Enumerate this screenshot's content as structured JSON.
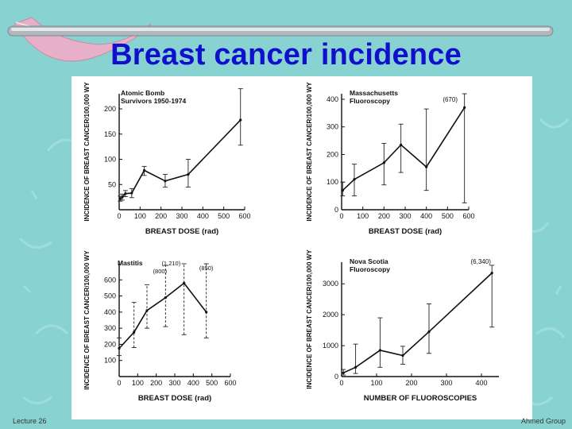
{
  "slide": {
    "title": "Breast cancer incidence",
    "footer_left": "Lecture 26",
    "footer_right": "Ahmed Group"
  },
  "colors": {
    "background": "#88d3d2",
    "title": "#1010cc",
    "accent_bar": "#b0b8bc",
    "swoosh": "#e8b0c8"
  },
  "chart_data": [
    {
      "type": "line",
      "title": "Atomic Bomb Survivors 1950-1974",
      "xlabel": "BREAST DOSE (rad)",
      "ylabel": "INCIDENCE OF BREAST CANCER/100,000 WY",
      "xlim": [
        0,
        600
      ],
      "ylim": [
        0,
        230
      ],
      "xticks": [
        0,
        100,
        200,
        300,
        400,
        500,
        600
      ],
      "yticks": [
        50,
        100,
        150,
        200
      ],
      "x": [
        5,
        15,
        30,
        60,
        120,
        220,
        330,
        580
      ],
      "y": [
        22,
        25,
        32,
        33,
        78,
        57,
        70,
        178
      ],
      "err_low": [
        17,
        19,
        26,
        24,
        68,
        45,
        45,
        128
      ],
      "err_high": [
        27,
        31,
        38,
        42,
        86,
        70,
        100,
        240
      ]
    },
    {
      "type": "line",
      "title": "Massachusetts Fluoroscopy",
      "xlabel": "BREAST DOSE (rad)",
      "ylabel": "INCIDENCE OF BREAST CANCER/100,000 WY",
      "xlim": [
        0,
        600
      ],
      "ylim": [
        0,
        420
      ],
      "xticks": [
        0,
        100,
        200,
        300,
        400,
        500,
        600
      ],
      "yticks": [
        0,
        100,
        200,
        300,
        400
      ],
      "x": [
        5,
        60,
        200,
        280,
        400,
        580
      ],
      "y": [
        70,
        110,
        170,
        235,
        155,
        370
      ],
      "err_low": [
        50,
        50,
        90,
        135,
        70,
        25
      ],
      "err_high": [
        100,
        165,
        240,
        310,
        365,
        420
      ],
      "annotation": "(670)"
    },
    {
      "type": "line",
      "title": "Mastitis",
      "xlabel": "BREAST DOSE (rad)",
      "ylabel": "INCIDENCE OF BREAST CANCER/100,000 WY",
      "xlim": [
        0,
        600
      ],
      "ylim": [
        0,
        700
      ],
      "xticks": [
        0,
        100,
        200,
        300,
        400,
        500,
        600
      ],
      "yticks": [
        100,
        200,
        300,
        400,
        500,
        600
      ],
      "x": [
        0,
        80,
        150,
        250,
        350,
        470
      ],
      "y": [
        175,
        275,
        410,
        490,
        580,
        400
      ],
      "err_low": [
        130,
        180,
        300,
        310,
        260,
        240
      ],
      "err_high": [
        240,
        460,
        570,
        690,
        700,
        700
      ],
      "annotations": [
        "(1,210)",
        "(800)",
        "(850)"
      ]
    },
    {
      "type": "line",
      "title": "Nova Scotia Fluoroscopy",
      "xlabel": "NUMBER OF FLUOROSCOPIES",
      "ylabel": "INCIDENCE OF BREAST CANCER/100,000 WY",
      "xlim": [
        0,
        450
      ],
      "ylim": [
        0,
        3700
      ],
      "xticks": [
        0,
        100,
        200,
        300,
        400
      ],
      "yticks": [
        0,
        1000,
        2000,
        3000
      ],
      "x": [
        5,
        40,
        110,
        175,
        250,
        430
      ],
      "y": [
        120,
        300,
        850,
        680,
        1450,
        3350
      ],
      "err_low": [
        50,
        100,
        300,
        400,
        750,
        1600
      ],
      "err_high": [
        230,
        1050,
        1900,
        980,
        2350,
        3600
      ],
      "annotation": "(6,340)"
    }
  ]
}
